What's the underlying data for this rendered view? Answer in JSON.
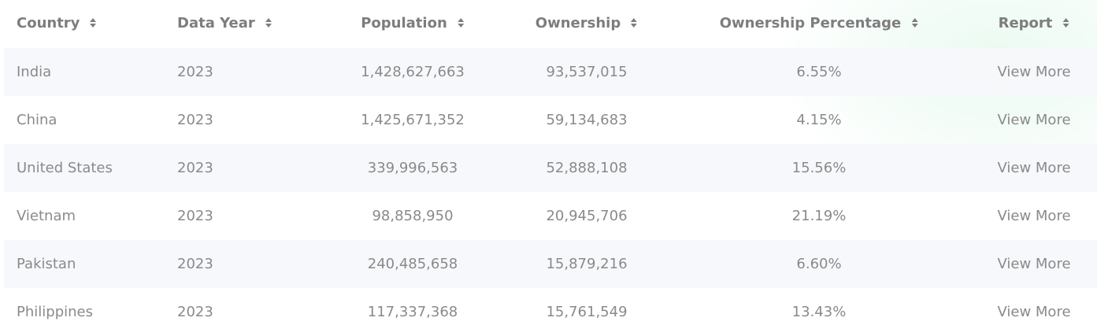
{
  "table": {
    "headers": [
      "Country",
      "Data Year",
      "Population",
      "Ownership",
      "Ownership Percentage",
      "Report"
    ],
    "rows": [
      [
        "India",
        "2023",
        "1,428,627,663",
        "93,537,015",
        "6.55%",
        "View More"
      ],
      [
        "China",
        "2023",
        "1,425,671,352",
        "59,134,683",
        "4.15%",
        "View More"
      ],
      [
        "United States",
        "2023",
        "339,996,563",
        "52,888,108",
        "15.56%",
        "View More"
      ],
      [
        "Vietnam",
        "2023",
        "98,858,950",
        "20,945,706",
        "21.19%",
        "View More"
      ],
      [
        "Pakistan",
        "2023",
        "240,485,658",
        "15,879,216",
        "6.60%",
        "View More"
      ],
      [
        "Philippines",
        "2023",
        "117,337,368",
        "15,761,549",
        "13.43%",
        "View More"
      ]
    ]
  }
}
